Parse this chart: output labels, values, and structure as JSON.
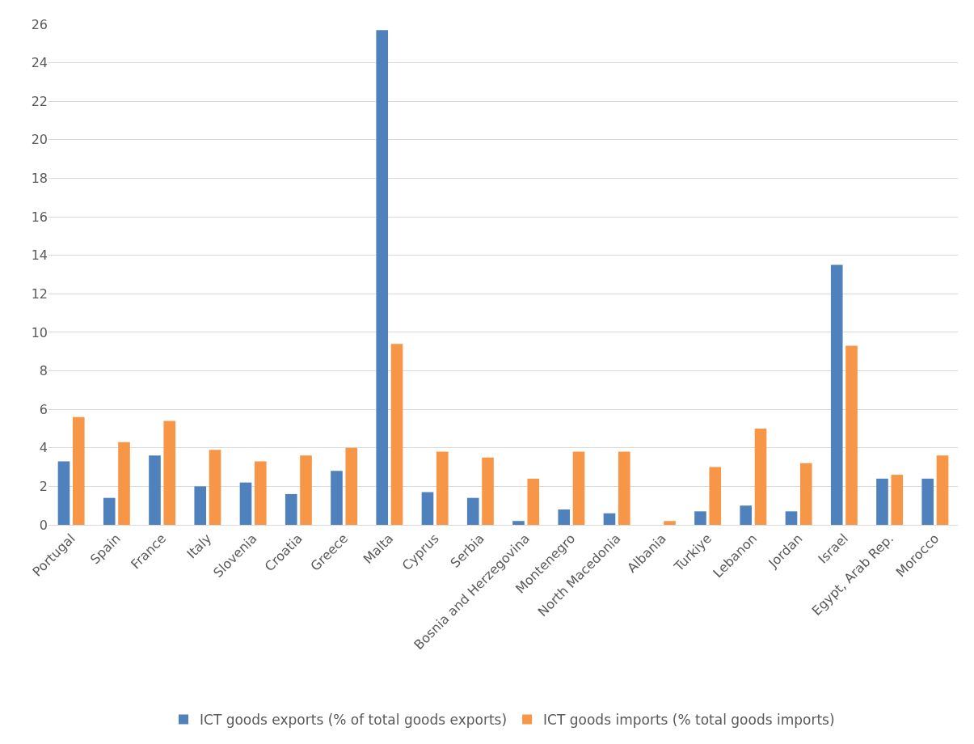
{
  "chart_data": {
    "type": "bar",
    "categories": [
      "Portugal",
      "Spain",
      "France",
      "Italy",
      "Slovenia",
      "Croatia",
      "Greece",
      "Malta",
      "Cyprus",
      "Serbia",
      "Bosnia and Herzegovina",
      "Montenegro",
      "North Macedonia",
      "Albania",
      "Turkiye",
      "Lebanon",
      "Jordan",
      "Israel",
      "Egypt, Arab Rep.",
      "Morocco"
    ],
    "series": [
      {
        "name": "ICT goods exports (% of total goods exports)",
        "color": "#4f81bd",
        "values": [
          3.3,
          1.4,
          3.6,
          2.0,
          2.2,
          1.6,
          2.8,
          25.7,
          1.7,
          1.4,
          0.2,
          0.8,
          0.6,
          0,
          0.7,
          1.0,
          0.7,
          13.5,
          2.4,
          2.4
        ]
      },
      {
        "name": "ICT goods imports (% total goods imports)",
        "color": "#f79646",
        "values": [
          5.6,
          4.3,
          5.4,
          3.9,
          3.3,
          3.6,
          4.0,
          9.4,
          3.8,
          3.5,
          2.4,
          3.8,
          3.8,
          0.2,
          3.0,
          5.0,
          3.2,
          9.3,
          2.6,
          3.6
        ]
      }
    ],
    "ylim": [
      0,
      26
    ],
    "yticks": [
      0,
      2,
      4,
      6,
      8,
      10,
      12,
      14,
      16,
      18,
      20,
      22,
      24,
      26
    ],
    "grid": "y",
    "legend": "bottom"
  }
}
